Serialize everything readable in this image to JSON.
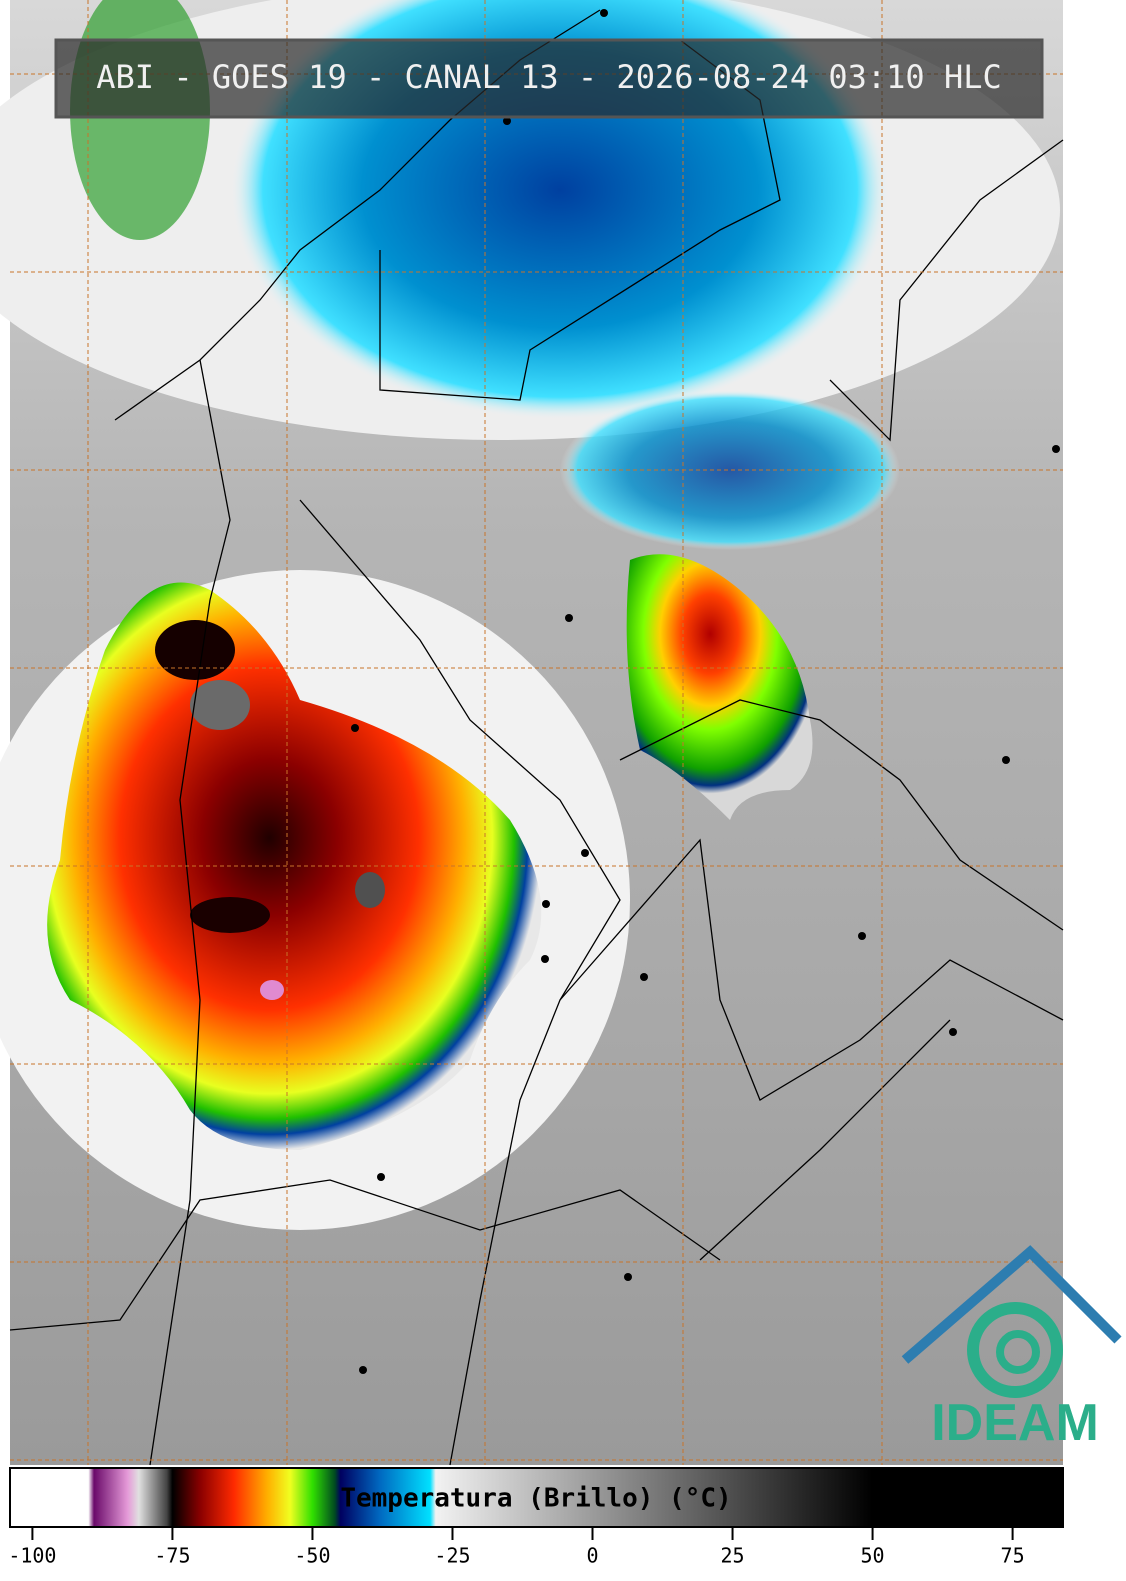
{
  "title": "ABI - GOES 19 - CANAL 13 - 2026-08-24 03:10 HLC",
  "logo": "IDEAM",
  "colorbar": {
    "label": "Temperatura (Brillo) (°C)",
    "xlim": [
      -104,
      84
    ],
    "xticks": [
      -100,
      -75,
      -50,
      -25,
      0,
      25,
      50,
      75
    ],
    "colormap": [
      {
        "value": -104,
        "color": "#ffffff"
      },
      {
        "value": -90,
        "color": "#ffffff"
      },
      {
        "value": -89,
        "color": "#6a0a6a"
      },
      {
        "value": -83,
        "color": "#e59ad8"
      },
      {
        "value": -81,
        "color": "#e0e0e0"
      },
      {
        "value": -76,
        "color": "#444444"
      },
      {
        "value": -75,
        "color": "#000000"
      },
      {
        "value": -70,
        "color": "#8b0000"
      },
      {
        "value": -64,
        "color": "#ff2a00"
      },
      {
        "value": -58,
        "color": "#ffb000"
      },
      {
        "value": -54,
        "color": "#f0ff20"
      },
      {
        "value": -50,
        "color": "#30e000"
      },
      {
        "value": -46,
        "color": "#004a20"
      },
      {
        "value": -45,
        "color": "#000060"
      },
      {
        "value": -38,
        "color": "#0068c0"
      },
      {
        "value": -29,
        "color": "#00e0ff"
      },
      {
        "value": -28,
        "color": "#f2f2f2"
      },
      {
        "value": 50,
        "color": "#000000"
      },
      {
        "value": 84,
        "color": "#000000"
      }
    ]
  }
}
